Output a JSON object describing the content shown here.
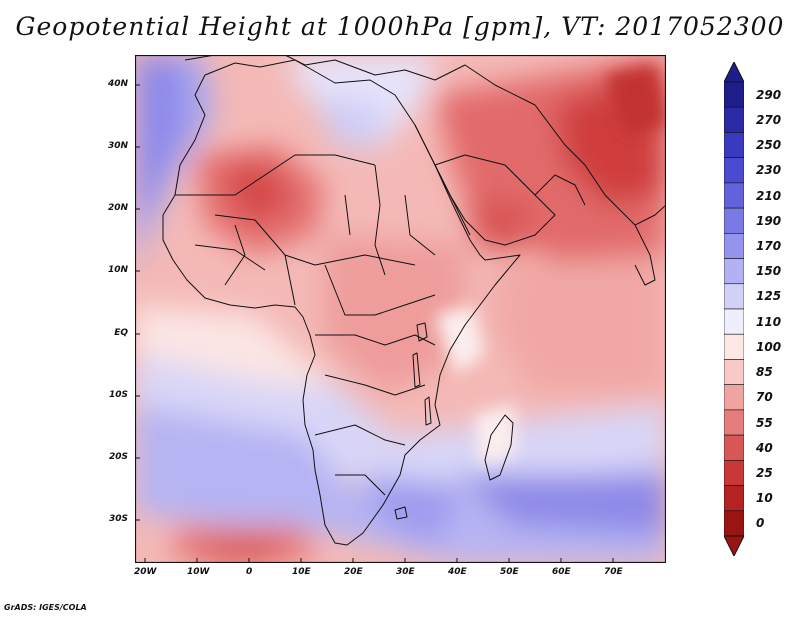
{
  "title": "Geopotential Height at 1000hPa [gpm], VT: 2017052300",
  "credit": "GrADS: IGES/COLA",
  "map": {
    "lat_labels": [
      "40N",
      "30N",
      "20N",
      "10N",
      "EQ",
      "10S",
      "20S",
      "30S"
    ],
    "lon_labels": [
      "20W",
      "10W",
      "0",
      "10E",
      "20E",
      "30E",
      "40E",
      "50E",
      "60E",
      "70E"
    ]
  },
  "colorbar": {
    "levels": [
      "290",
      "270",
      "250",
      "230",
      "210",
      "190",
      "170",
      "150",
      "125",
      "110",
      "100",
      "85",
      "70",
      "55",
      "40",
      "25",
      "10",
      "0"
    ],
    "colors": [
      "#1f1d8a",
      "#2a2aa6",
      "#3a3ac0",
      "#4b4bd2",
      "#6262dc",
      "#7a7ae6",
      "#9494ee",
      "#b1b1f4",
      "#d1d1f8",
      "#eeeefd",
      "#fde8e6",
      "#f8c9c6",
      "#f0a4a2",
      "#e57d7d",
      "#d85656",
      "#c83838",
      "#b52222",
      "#9b1414"
    ]
  }
}
